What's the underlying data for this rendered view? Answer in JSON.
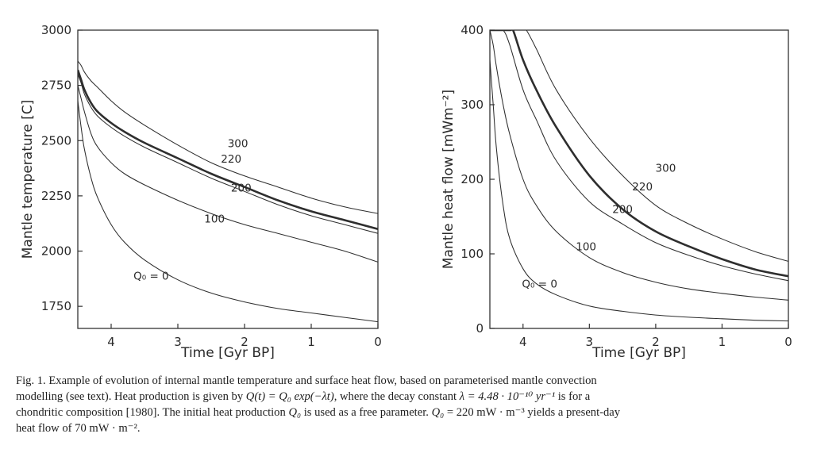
{
  "chart_data": [
    {
      "type": "line",
      "xlabel": "Time [Gyr BP]",
      "ylabel": "Mantle temperature [C]",
      "xlim": [
        4.5,
        0
      ],
      "ylim": [
        1650,
        3000
      ],
      "xticks": [
        4,
        3,
        2,
        1,
        0
      ],
      "yticks": [
        1750,
        2000,
        2250,
        2500,
        2750,
        3000
      ],
      "grid": false,
      "series": [
        {
          "name": "Q₀ = 0",
          "label_x": 3.4,
          "label_y": 1870,
          "bold": false,
          "x": [
            4.5,
            4.45,
            4.4,
            4.3,
            4.2,
            4.0,
            3.8,
            3.5,
            3.0,
            2.5,
            2.0,
            1.5,
            1.0,
            0.5,
            0.0
          ],
          "y": [
            2680,
            2560,
            2460,
            2330,
            2240,
            2120,
            2040,
            1960,
            1870,
            1810,
            1770,
            1740,
            1720,
            1700,
            1680
          ]
        },
        {
          "name": "100",
          "label_x": 2.45,
          "label_y": 2130,
          "bold": false,
          "x": [
            4.5,
            4.45,
            4.4,
            4.3,
            4.2,
            4.0,
            3.8,
            3.5,
            3.0,
            2.5,
            2.0,
            1.5,
            1.0,
            0.5,
            0.0
          ],
          "y": [
            2750,
            2690,
            2630,
            2530,
            2470,
            2400,
            2350,
            2300,
            2230,
            2170,
            2120,
            2080,
            2040,
            2000,
            1950
          ]
        },
        {
          "name": "200",
          "label_x": 2.05,
          "label_y": 2270,
          "bold": false,
          "x": [
            4.5,
            4.45,
            4.4,
            4.3,
            4.2,
            4.0,
            3.8,
            3.5,
            3.0,
            2.5,
            2.0,
            1.5,
            1.0,
            0.5,
            0.0
          ],
          "y": [
            2800,
            2760,
            2710,
            2650,
            2610,
            2560,
            2520,
            2470,
            2400,
            2330,
            2270,
            2210,
            2160,
            2120,
            2080
          ]
        },
        {
          "name": "220",
          "label_x": 2.2,
          "label_y": 2400,
          "bold": true,
          "x": [
            4.5,
            4.45,
            4.4,
            4.3,
            4.2,
            4.0,
            3.8,
            3.5,
            3.0,
            2.5,
            2.0,
            1.5,
            1.0,
            0.5,
            0.0
          ],
          "y": [
            2820,
            2775,
            2730,
            2670,
            2630,
            2580,
            2540,
            2490,
            2420,
            2350,
            2290,
            2230,
            2180,
            2140,
            2100
          ]
        },
        {
          "name": "300",
          "label_x": 2.1,
          "label_y": 2470,
          "bold": false,
          "x": [
            4.5,
            4.45,
            4.4,
            4.3,
            4.2,
            4.0,
            3.8,
            3.5,
            3.0,
            2.5,
            2.0,
            1.5,
            1.0,
            0.5,
            0.0
          ],
          "y": [
            2860,
            2840,
            2810,
            2770,
            2740,
            2680,
            2630,
            2570,
            2480,
            2400,
            2340,
            2290,
            2240,
            2200,
            2170
          ]
        }
      ]
    },
    {
      "type": "line",
      "xlabel": "Time [Gyr BP]",
      "ylabel": "Mantle heat flow [mWm⁻²]",
      "xlim": [
        4.5,
        0
      ],
      "ylim": [
        0,
        400
      ],
      "xticks": [
        4,
        3,
        2,
        1,
        0
      ],
      "yticks": [
        0,
        100,
        200,
        300,
        400
      ],
      "grid": false,
      "series": [
        {
          "name": "Q₀ = 0",
          "label_x": 3.75,
          "label_y": 55,
          "bold": false,
          "x": [
            4.5,
            4.45,
            4.4,
            4.3,
            4.2,
            4.0,
            3.8,
            3.5,
            3.0,
            2.5,
            2.0,
            1.5,
            1.0,
            0.5,
            0.0
          ],
          "y": [
            360,
            300,
            240,
            165,
            120,
            80,
            60,
            45,
            30,
            23,
            18,
            15,
            13,
            11,
            10
          ]
        },
        {
          "name": "100",
          "label_x": 3.05,
          "label_y": 105,
          "bold": false,
          "x": [
            4.5,
            4.45,
            4.4,
            4.3,
            4.2,
            4.0,
            3.8,
            3.5,
            3.0,
            2.5,
            2.0,
            1.5,
            1.0,
            0.5,
            0.0
          ],
          "y": [
            400,
            380,
            350,
            300,
            260,
            200,
            165,
            130,
            95,
            75,
            62,
            53,
            47,
            42,
            38
          ]
        },
        {
          "name": "200",
          "label_x": 2.5,
          "label_y": 155,
          "bold": false,
          "x": [
            4.5,
            4.4,
            4.3,
            4.2,
            4.0,
            3.8,
            3.5,
            3.0,
            2.5,
            2.0,
            1.5,
            1.0,
            0.5,
            0.0
          ],
          "y": [
            400,
            400,
            400,
            380,
            320,
            280,
            225,
            170,
            140,
            115,
            98,
            84,
            73,
            64
          ]
        },
        {
          "name": "220",
          "label_x": 2.2,
          "label_y": 185,
          "bold": true,
          "x": [
            4.5,
            4.2,
            4.15,
            4.0,
            3.8,
            3.5,
            3.0,
            2.5,
            2.0,
            1.5,
            1.0,
            0.5,
            0.0
          ],
          "y": [
            400,
            400,
            400,
            360,
            320,
            270,
            205,
            160,
            130,
            110,
            93,
            79,
            70
          ]
        },
        {
          "name": "300",
          "label_x": 1.85,
          "label_y": 210,
          "bold": false,
          "x": [
            4.5,
            4.0,
            3.95,
            3.8,
            3.5,
            3.0,
            2.5,
            2.0,
            1.5,
            1.0,
            0.5,
            0.0
          ],
          "y": [
            400,
            400,
            400,
            375,
            320,
            255,
            205,
            165,
            140,
            120,
            103,
            90
          ]
        }
      ]
    }
  ],
  "caption": {
    "line1": "Fig. 1. Example of evolution of internal mantle temperature and surface heat flow, based on parameterised mantle convection",
    "line2_a": "modelling (see text). Heat production is given by ",
    "line2_formula": "Q(t) = Q₀ exp(−λt)",
    "line2_b": ", where the decay constant ",
    "line2_lambda": "λ = 4.48 · 10⁻¹⁰ yr⁻¹",
    "line2_c": " is for a",
    "line3_a": "chondritic composition [1980]. The initial heat production ",
    "line3_q0": "Q₀",
    "line3_b": " is used as a free parameter. ",
    "line3_q0b": "Q₀",
    "line3_c": " = 220 mW · m⁻³ yields a present-day",
    "line4": "heat flow of 70 mW · m⁻²."
  }
}
